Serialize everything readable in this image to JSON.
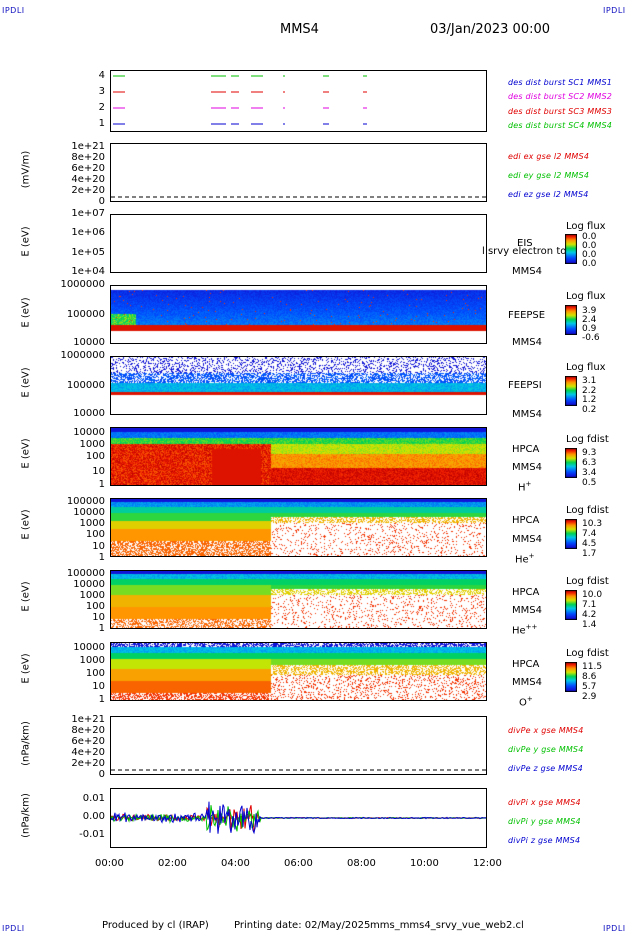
{
  "header": {
    "corner_left_top": "IPDLI",
    "corner_right_top": "IPDLI",
    "corner_left_bottom": "IPDLI",
    "corner_right_bottom": "IPDLI",
    "spacecraft": "MMS4",
    "date": "03/Jan/2023 00:00"
  },
  "footer": {
    "produced": "Produced by cl (IRAP)",
    "printing": "Printing date: 02/May/2025",
    "file": "mms_mms4_srvy_vue_web2.cl"
  },
  "colors": {
    "red": "#e00000",
    "green": "#00c000",
    "blue": "#0000d0",
    "magenta": "#e000e0"
  },
  "chart_data": {
    "type": "stacked-panels",
    "x_axis": {
      "ticks": [
        "00:00",
        "02:00",
        "04:00",
        "06:00",
        "08:00",
        "10:00",
        "12:00"
      ]
    },
    "panels": [
      {
        "type": "scatter",
        "id": "burst",
        "yticks": [
          "4",
          "3",
          "2",
          "1"
        ],
        "legend": [
          {
            "text": "des dist burst SC1 MMS1",
            "color": "#0000d0"
          },
          {
            "text": "des dist burst SC2 MMS2",
            "color": "#e000e0"
          },
          {
            "text": "des dist burst SC3 MMS3",
            "color": "#e00000"
          },
          {
            "text": "des dist burst SC4 MMS4",
            "color": "#00c000"
          }
        ]
      },
      {
        "type": "line",
        "id": "edi",
        "ylabel": "(mV/m)",
        "yticks": [
          "1e+21",
          "8e+20",
          "6e+20",
          "4e+20",
          "2e+20",
          "0"
        ],
        "legend": [
          {
            "text": "edi ex gse l2 MMS4",
            "color": "#e00000"
          },
          {
            "text": "edi ey gse l2 MMS4",
            "color": "#00c000"
          },
          {
            "text": "edi ez gse l2 MMS4",
            "color": "#0000d0"
          }
        ]
      },
      {
        "type": "heatmap",
        "id": "eis",
        "ylabel": "E (eV)",
        "yticks": [
          "1e+07",
          "1e+06",
          "1e+05",
          "1e+04"
        ],
        "right_labels": [
          "EIS",
          "MMS4"
        ],
        "overlay_text": "l  srvy electron to",
        "colorbar": {
          "title": "Log flux",
          "values": [
            "0.0",
            "0.0",
            "0.0",
            "0.0"
          ]
        }
      },
      {
        "type": "heatmap",
        "id": "feepse",
        "ylabel": "E (eV)",
        "yticks": [
          "1000000",
          "100000",
          "10000"
        ],
        "right_labels": [
          "FEEPSE",
          "MMS4"
        ],
        "colorbar": {
          "title": "Log flux",
          "values": [
            "3.9",
            "2.4",
            "0.9",
            "-0.6"
          ]
        }
      },
      {
        "type": "heatmap",
        "id": "feepsi",
        "ylabel": "E (eV)",
        "yticks": [
          "1000000",
          "100000",
          "10000"
        ],
        "right_labels": [
          "FEEPSI",
          "MMS4"
        ],
        "colorbar": {
          "title": "Log flux",
          "values": [
            "3.1",
            "2.2",
            "1.2",
            "0.2"
          ]
        }
      },
      {
        "type": "heatmap",
        "id": "hpca-h",
        "ylabel": "E (eV)",
        "yticks": [
          "10000",
          "1000",
          "100",
          "10",
          "1"
        ],
        "right_labels": [
          "HPCA",
          "MMS4"
        ],
        "species": "H",
        "charge": "+",
        "colorbar": {
          "title": "Log fdist",
          "values": [
            "9.3",
            "6.3",
            "3.4",
            "0.5"
          ]
        }
      },
      {
        "type": "heatmap",
        "id": "hpca-he",
        "ylabel": "E (eV)",
        "yticks": [
          "100000",
          "10000",
          "1000",
          "100",
          "10",
          "1"
        ],
        "right_labels": [
          "HPCA",
          "MMS4"
        ],
        "species": "He",
        "charge": "+",
        "colorbar": {
          "title": "Log fdist",
          "values": [
            "10.3",
            "7.4",
            "4.5",
            "1.7"
          ]
        }
      },
      {
        "type": "heatmap",
        "id": "hpca-hepp",
        "ylabel": "E (eV)",
        "yticks": [
          "100000",
          "10000",
          "1000",
          "100",
          "10",
          "1"
        ],
        "right_labels": [
          "HPCA",
          "MMS4"
        ],
        "species": "He",
        "charge": "++",
        "colorbar": {
          "title": "Log fdist",
          "values": [
            "10.0",
            "7.1",
            "4.2",
            "1.4"
          ]
        }
      },
      {
        "type": "heatmap",
        "id": "hpca-o",
        "ylabel": "E (eV)",
        "yticks": [
          "10000",
          "1000",
          "100",
          "10",
          "1"
        ],
        "right_labels": [
          "HPCA",
          "MMS4"
        ],
        "species": "O",
        "charge": "+",
        "colorbar": {
          "title": "Log fdist",
          "values": [
            "11.5",
            "8.6",
            "5.7",
            "2.9"
          ]
        }
      },
      {
        "type": "line",
        "id": "divpe",
        "ylabel": "(nPa/km)",
        "yticks": [
          "1e+21",
          "8e+20",
          "6e+20",
          "4e+20",
          "2e+20",
          "0"
        ],
        "legend": [
          {
            "text": "divPe x gse MMS4",
            "color": "#e00000"
          },
          {
            "text": "divPe y gse MMS4",
            "color": "#00c000"
          },
          {
            "text": "divPe z gse MMS4",
            "color": "#0000d0"
          }
        ]
      },
      {
        "type": "line",
        "id": "divpi",
        "ylabel": "(nPa/km)",
        "yticks": [
          "0.01",
          "0.00",
          "-0.01"
        ],
        "legend": [
          {
            "text": "divPi x gse MMS4",
            "color": "#e00000"
          },
          {
            "text": "divPi y gse MMS4",
            "color": "#00c000"
          },
          {
            "text": "divPi z gse MMS4",
            "color": "#0000d0"
          }
        ]
      }
    ]
  }
}
